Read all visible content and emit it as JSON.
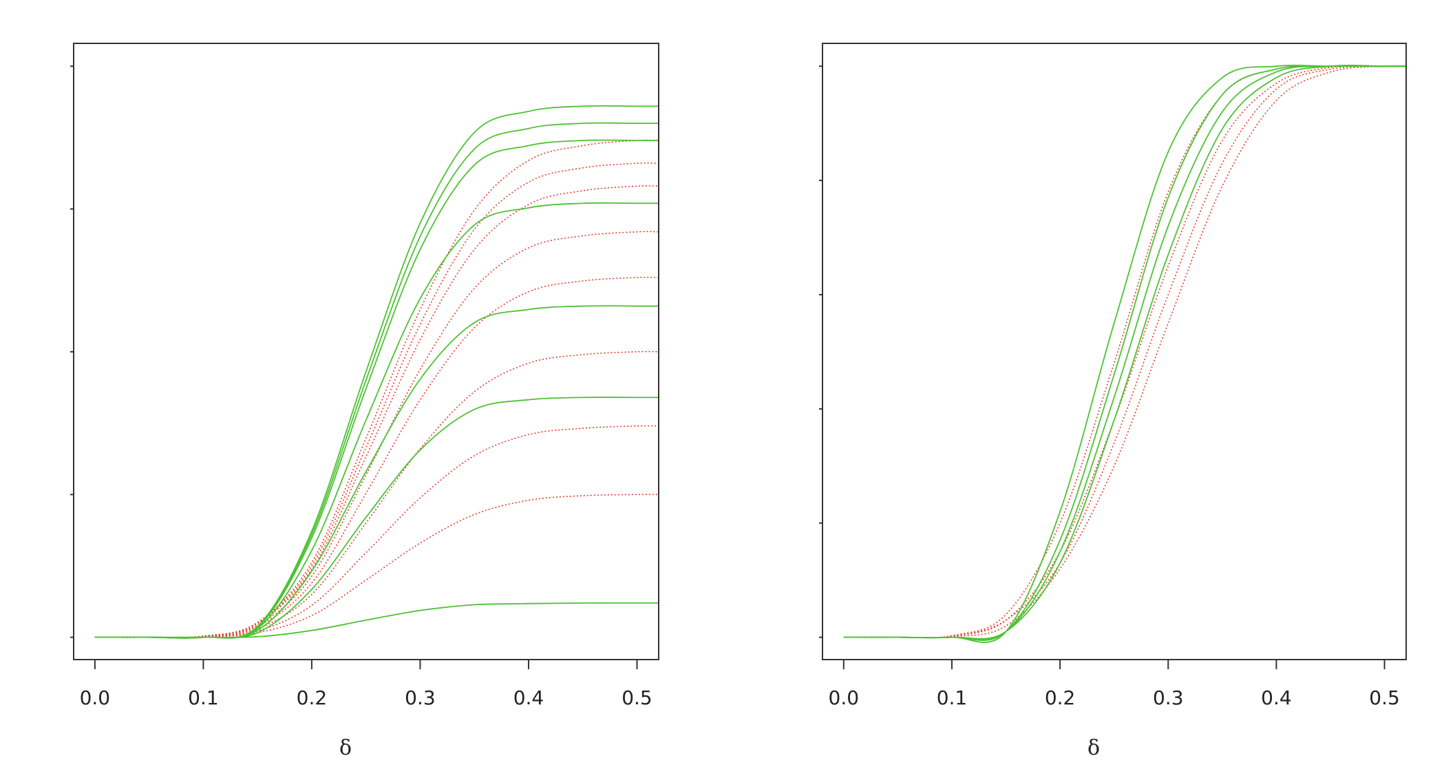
{
  "chart_data": [
    {
      "type": "line",
      "xlabel": "δ",
      "x": [
        0,
        0.05,
        0.1,
        0.15,
        0.2,
        0.25,
        0.3,
        0.35,
        0.4,
        0.45,
        0.5,
        0.52
      ],
      "xlim": [
        -0.0196,
        0.52
      ],
      "ylim": [
        -0.039,
        1.04
      ],
      "xticks": [
        {
          "value": 0,
          "label": "0.0"
        },
        0.1,
        0.2,
        0.3,
        0.4,
        0.5
      ],
      "yticks": [
        0,
        0.25,
        0.5,
        0.75,
        1
      ],
      "series": [
        {
          "color": "#e8392a",
          "linestyle": "dotted",
          "values": [
            0,
            0,
            0.002,
            0.026,
            0.131,
            0.348,
            0.574,
            0.748,
            0.835,
            0.861,
            0.87,
            0.87
          ]
        },
        {
          "color": "#e8392a",
          "linestyle": "dotted",
          "values": [
            0,
            0,
            0.002,
            0.025,
            0.125,
            0.332,
            0.548,
            0.714,
            0.797,
            0.822,
            0.83,
            0.83
          ]
        },
        {
          "color": "#e8392a",
          "linestyle": "dotted",
          "values": [
            0,
            0,
            0.002,
            0.024,
            0.119,
            0.316,
            0.521,
            0.679,
            0.758,
            0.782,
            0.79,
            0.79
          ]
        },
        {
          "color": "#e8392a",
          "linestyle": "dotted",
          "values": [
            0,
            0,
            0.001,
            0.021,
            0.107,
            0.284,
            0.469,
            0.611,
            0.682,
            0.703,
            0.71,
            0.71
          ]
        },
        {
          "color": "#e8392a",
          "linestyle": "dotted",
          "values": [
            0,
            0,
            0.001,
            0.019,
            0.095,
            0.252,
            0.416,
            0.542,
            0.605,
            0.624,
            0.63,
            0.63
          ]
        },
        {
          "color": "#e8392a",
          "linestyle": "dotted",
          "values": [
            0,
            0,
            0.001,
            0.015,
            0.075,
            0.2,
            0.33,
            0.43,
            0.48,
            0.495,
            0.5,
            0.5
          ]
        },
        {
          "color": "#e8392a",
          "linestyle": "dotted",
          "values": [
            0,
            0,
            0.001,
            0.011,
            0.056,
            0.148,
            0.244,
            0.318,
            0.355,
            0.366,
            0.37,
            0.37
          ]
        },
        {
          "color": "#e8392a",
          "linestyle": "dotted",
          "values": [
            0,
            0,
            0,
            0.008,
            0.038,
            0.1,
            0.165,
            0.215,
            0.24,
            0.248,
            0.25,
            0.25
          ]
        },
        {
          "color": "#4dc233",
          "linestyle": "solid",
          "values": [
            0,
            0,
            0,
            0.019,
            0.186,
            0.465,
            0.725,
            0.884,
            0.921,
            0.93,
            0.93,
            0.93
          ]
        },
        {
          "color": "#4dc233",
          "linestyle": "solid",
          "values": [
            0,
            0,
            0,
            0.018,
            0.18,
            0.45,
            0.702,
            0.855,
            0.891,
            0.9,
            0.9,
            0.9
          ]
        },
        {
          "color": "#4dc233",
          "linestyle": "solid",
          "values": [
            0,
            0,
            0,
            0.017,
            0.174,
            0.435,
            0.679,
            0.827,
            0.861,
            0.87,
            0.87,
            0.87
          ]
        },
        {
          "color": "#4dc233",
          "linestyle": "solid",
          "values": [
            0,
            0,
            0,
            0.015,
            0.152,
            0.38,
            0.593,
            0.722,
            0.752,
            0.76,
            0.76,
            0.76
          ]
        },
        {
          "color": "#4dc233",
          "linestyle": "solid",
          "values": [
            0,
            0,
            0,
            0.012,
            0.116,
            0.29,
            0.452,
            0.551,
            0.574,
            0.58,
            0.58,
            0.58
          ]
        },
        {
          "color": "#4dc233",
          "linestyle": "solid",
          "values": [
            0,
            0,
            0,
            0.008,
            0.084,
            0.21,
            0.328,
            0.399,
            0.416,
            0.42,
            0.42,
            0.42
          ]
        },
        {
          "color": "#4dc233",
          "linestyle": "solid",
          "values": [
            0,
            0,
            0,
            0.001,
            0.012,
            0.03,
            0.047,
            0.057,
            0.059,
            0.06,
            0.06,
            0.06
          ]
        }
      ]
    },
    {
      "type": "line",
      "xlabel": "δ",
      "x": [
        0,
        0.05,
        0.1,
        0.15,
        0.2,
        0.25,
        0.3,
        0.35,
        0.4,
        0.45,
        0.5,
        0.52
      ],
      "xlim": [
        -0.0196,
        0.52
      ],
      "ylim": [
        -0.039,
        1.04
      ],
      "xticks": [
        {
          "value": 0,
          "label": "0.0"
        },
        0.1,
        0.2,
        0.3,
        0.4,
        0.5
      ],
      "yticks": [
        0,
        0.2,
        0.4,
        0.6,
        0.8,
        1
      ],
      "series": [
        {
          "color": "#e8392a",
          "linestyle": "dotted",
          "values": [
            0,
            0,
            0.003,
            0.04,
            0.2,
            0.48,
            0.78,
            0.95,
            0.995,
            1,
            1,
            1
          ]
        },
        {
          "color": "#e8392a",
          "linestyle": "dotted",
          "values": [
            0,
            0,
            0.002,
            0.03,
            0.15,
            0.38,
            0.65,
            0.87,
            0.97,
            0.998,
            1,
            1
          ]
        },
        {
          "color": "#e8392a",
          "linestyle": "dotted",
          "values": [
            0,
            0,
            0.002,
            0.03,
            0.13,
            0.34,
            0.6,
            0.83,
            0.96,
            0.995,
            1,
            1
          ]
        },
        {
          "color": "#e8392a",
          "linestyle": "dotted",
          "values": [
            0,
            0,
            0.001,
            0.02,
            0.12,
            0.3,
            0.55,
            0.79,
            0.94,
            0.99,
            1,
            1
          ]
        },
        {
          "color": "#4dc233",
          "linestyle": "solid",
          "values": [
            0,
            0,
            0,
            0.01,
            0.22,
            0.55,
            0.85,
            0.98,
            1,
            1,
            1,
            1
          ]
        },
        {
          "color": "#4dc233",
          "linestyle": "solid",
          "values": [
            0,
            0,
            0,
            0.01,
            0.17,
            0.46,
            0.77,
            0.95,
            0.995,
            1,
            1,
            1
          ]
        },
        {
          "color": "#4dc233",
          "linestyle": "solid",
          "values": [
            0,
            0,
            0,
            0.01,
            0.15,
            0.42,
            0.72,
            0.92,
            0.99,
            1,
            1,
            1
          ]
        },
        {
          "color": "#4dc233",
          "linestyle": "solid",
          "values": [
            0,
            0,
            0,
            0.01,
            0.13,
            0.38,
            0.67,
            0.89,
            0.98,
            1,
            1,
            1
          ]
        }
      ]
    }
  ]
}
